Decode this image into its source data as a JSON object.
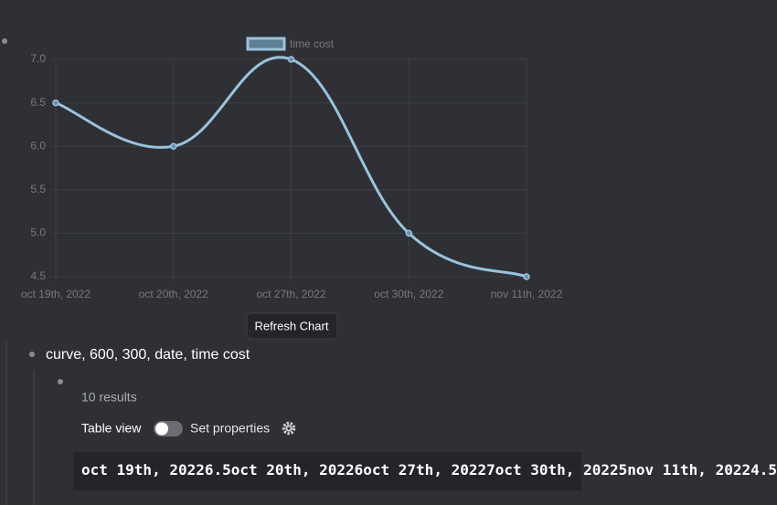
{
  "chart_data": {
    "type": "line",
    "categories": [
      "oct 19th, 2022",
      "oct 20th, 2022",
      "oct 27th, 2022",
      "oct 30th, 2022",
      "nov 11th, 2022"
    ],
    "series": [
      {
        "name": "time cost",
        "color": "#9ac3dc",
        "values": [
          6.5,
          6,
          7,
          5,
          4.5
        ]
      }
    ],
    "ylim": [
      4.5,
      7
    ],
    "yticks": [
      4.5,
      {
        "value": 5,
        "label": "5.0"
      },
      5.5,
      {
        "value": 6,
        "label": "6.0"
      },
      6.5,
      {
        "value": 7,
        "label": "7.0"
      }
    ],
    "grid": true
  },
  "button": "Refresh Chart",
  "block": "curve, 600, 300, date, time cost",
  "query": {
    "count": "10 results",
    "table_view": "Table view",
    "set_properties": "Set properties",
    "result_text": "oct 19th, 20226.5oct 20th, 20226oct 27th, 20227oct 30th, 20225nov 11th, 20224.5"
  }
}
